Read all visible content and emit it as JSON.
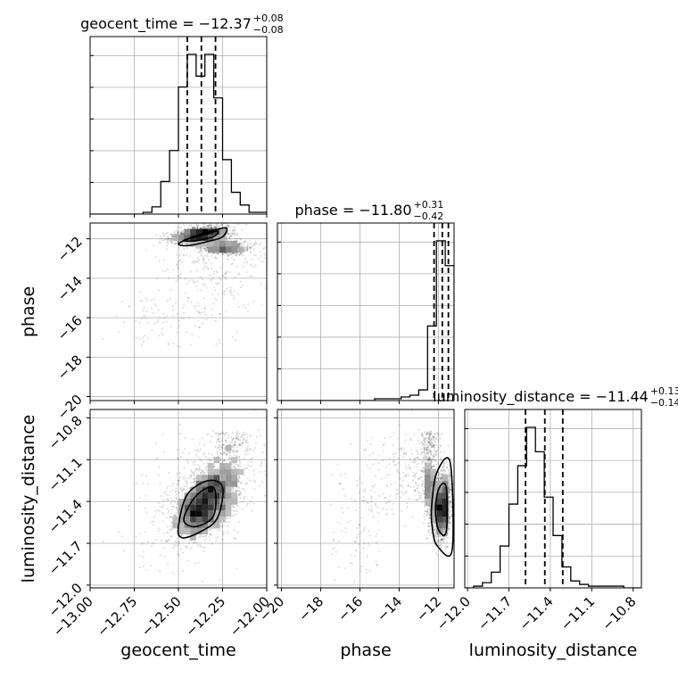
{
  "chart_data": {
    "type": "corner",
    "parameters": [
      {
        "name": "geocent_time",
        "label": "geocent_time",
        "title": "geocent_time = −12.37",
        "title_sup": "+0.08",
        "title_sub": "−0.08",
        "range": [
          -13.0,
          -12.0
        ],
        "ticks": [
          -13.0,
          -12.75,
          -12.5,
          -12.25,
          -12.0
        ],
        "tick_labels": [
          "−13.00",
          "−12.75",
          "−12.50",
          "−12.25",
          "−12.00"
        ],
        "quantiles": [
          -12.45,
          -12.37,
          -12.29
        ],
        "hist_bins": [
          -13.0,
          -12.95,
          -12.9,
          -12.85,
          -12.8,
          -12.75,
          -12.7,
          -12.65,
          -12.6,
          -12.55,
          -12.5,
          -12.45,
          -12.4,
          -12.35,
          -12.3,
          -12.25,
          -12.2,
          -12.15,
          -12.1,
          -12.05,
          -12.0
        ],
        "hist_counts": [
          0,
          0,
          0,
          0,
          0,
          0,
          1,
          4,
          18,
          35,
          70,
          88,
          76,
          88,
          64,
          30,
          12,
          5,
          1,
          1
        ]
      },
      {
        "name": "phase",
        "label": "phase",
        "title": "phase = −11.80",
        "title_sup": "+0.31",
        "title_sub": "−0.42",
        "range": [
          -20.2,
          -11.2
        ],
        "ticks": [
          -20,
          -18,
          -16,
          -14,
          -12
        ],
        "tick_labels": [
          "−20",
          "−18",
          "−16",
          "−14",
          "−12"
        ],
        "quantiles": [
          -12.22,
          -11.8,
          -11.49
        ],
        "hist_bins": [
          -20.2,
          -19.75,
          -19.3,
          -18.85,
          -18.4,
          -17.95,
          -17.5,
          -17.05,
          -16.6,
          -16.15,
          -15.7,
          -15.25,
          -14.8,
          -14.35,
          -13.9,
          -13.45,
          -13.0,
          -12.55,
          -12.1,
          -11.65,
          -11.2
        ],
        "hist_counts": [
          0,
          0,
          0,
          0,
          0,
          0,
          0,
          0,
          0,
          0,
          0,
          1,
          1,
          1,
          2,
          3,
          6,
          42,
          90,
          76
        ]
      },
      {
        "name": "luminosity_distance",
        "label": "luminosity_distance",
        "title": "luminosity_distance = −11.44",
        "title_sup": "+0.13",
        "title_sub": "−0.14",
        "range": [
          -12.02,
          -10.74
        ],
        "ticks": [
          -12.0,
          -11.7,
          -11.4,
          -11.1,
          -10.8
        ],
        "tick_labels": [
          "−12.0",
          "−11.7",
          "−11.4",
          "−11.1",
          "−10.8"
        ],
        "quantiles": [
          -11.58,
          -11.44,
          -11.31
        ],
        "hist_bins": [
          -12.02,
          -11.956,
          -11.892,
          -11.828,
          -11.764,
          -11.7,
          -11.636,
          -11.572,
          -11.508,
          -11.444,
          -11.38,
          -11.316,
          -11.252,
          -11.188,
          -11.124,
          -11.06,
          -10.996,
          -10.932,
          -10.868,
          -10.804,
          -10.74
        ],
        "hist_counts": [
          0,
          1,
          3,
          9,
          24,
          48,
          70,
          92,
          78,
          52,
          30,
          12,
          4,
          2,
          1,
          1,
          1,
          1,
          0,
          0
        ]
      }
    ],
    "panels_2d": [
      {
        "x": "geocent_time",
        "y": "phase",
        "peak": [
          -12.37,
          -11.85
        ],
        "contours": [
          [
            [
              -12.5,
              -12.25
            ],
            [
              -12.43,
              -11.95
            ],
            [
              -12.32,
              -11.62
            ],
            [
              -12.23,
              -11.45
            ],
            [
              -12.25,
              -11.9
            ],
            [
              -12.34,
              -12.15
            ],
            [
              -12.45,
              -12.35
            ]
          ],
          [
            [
              -12.47,
              -12.08
            ],
            [
              -12.37,
              -11.82
            ],
            [
              -12.28,
              -11.62
            ],
            [
              -12.3,
              -11.88
            ],
            [
              -12.4,
              -12.1
            ]
          ]
        ]
      },
      {
        "x": "geocent_time",
        "y": "luminosity_distance",
        "peak": [
          -12.4,
          -11.45
        ],
        "contours": [
          [
            [
              -12.5,
              -11.58
            ],
            [
              -12.45,
              -11.35
            ],
            [
              -12.33,
              -11.25
            ],
            [
              -12.25,
              -11.3
            ],
            [
              -12.28,
              -11.52
            ],
            [
              -12.38,
              -11.62
            ],
            [
              -12.48,
              -11.66
            ]
          ],
          [
            [
              -12.47,
              -11.53
            ],
            [
              -12.4,
              -11.36
            ],
            [
              -12.3,
              -11.3
            ],
            [
              -12.3,
              -11.5
            ],
            [
              -12.4,
              -11.58
            ]
          ]
        ]
      },
      {
        "x": "phase",
        "y": "luminosity_distance",
        "peak": [
          -11.8,
          -11.45
        ],
        "contours": [
          [
            [
              -12.35,
              -11.45
            ],
            [
              -12.1,
              -11.2
            ],
            [
              -11.4,
              -11.12
            ],
            [
              -11.3,
              -11.75
            ],
            [
              -12.05,
              -11.72
            ],
            [
              -12.3,
              -11.6
            ]
          ],
          [
            [
              -12.15,
              -11.45
            ],
            [
              -11.95,
              -11.3
            ],
            [
              -11.6,
              -11.3
            ],
            [
              -11.6,
              -11.62
            ],
            [
              -12.0,
              -11.6
            ]
          ]
        ]
      }
    ],
    "grid": true
  }
}
